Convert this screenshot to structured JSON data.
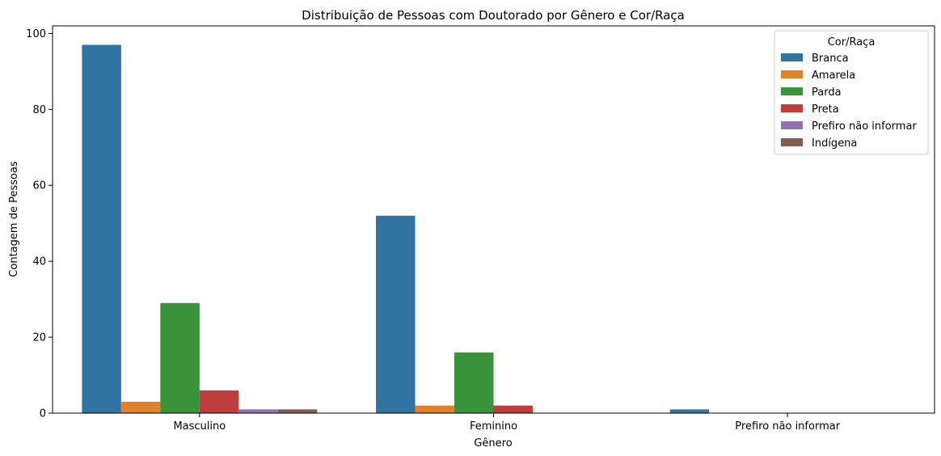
{
  "chart_data": {
    "type": "bar",
    "title": "Distribuição de Pessoas com Doutorado por Gênero e Cor/Raça",
    "xlabel": "Gênero",
    "ylabel": "Contagem de Pessoas",
    "categories": [
      "Masculino",
      "Feminino",
      "Prefiro não informar"
    ],
    "ylim": [
      0,
      102
    ],
    "yticks": [
      0,
      20,
      40,
      60,
      80,
      100
    ],
    "grid": false,
    "legend": {
      "title": "Cor/Raça",
      "placement": "top-right"
    },
    "series": [
      {
        "name": "Branca",
        "color": "#3274a1",
        "values": [
          97,
          52,
          1
        ]
      },
      {
        "name": "Amarela",
        "color": "#e1812c",
        "values": [
          3,
          2,
          0
        ]
      },
      {
        "name": "Parda",
        "color": "#3a923a",
        "values": [
          29,
          16,
          0
        ]
      },
      {
        "name": "Preta",
        "color": "#c03d3e",
        "values": [
          6,
          2,
          0
        ]
      },
      {
        "name": "Prefiro não informar",
        "color": "#9372b2",
        "values": [
          1,
          0,
          0
        ]
      },
      {
        "name": "Indígena",
        "color": "#845b53",
        "values": [
          1,
          0,
          0
        ]
      }
    ]
  }
}
